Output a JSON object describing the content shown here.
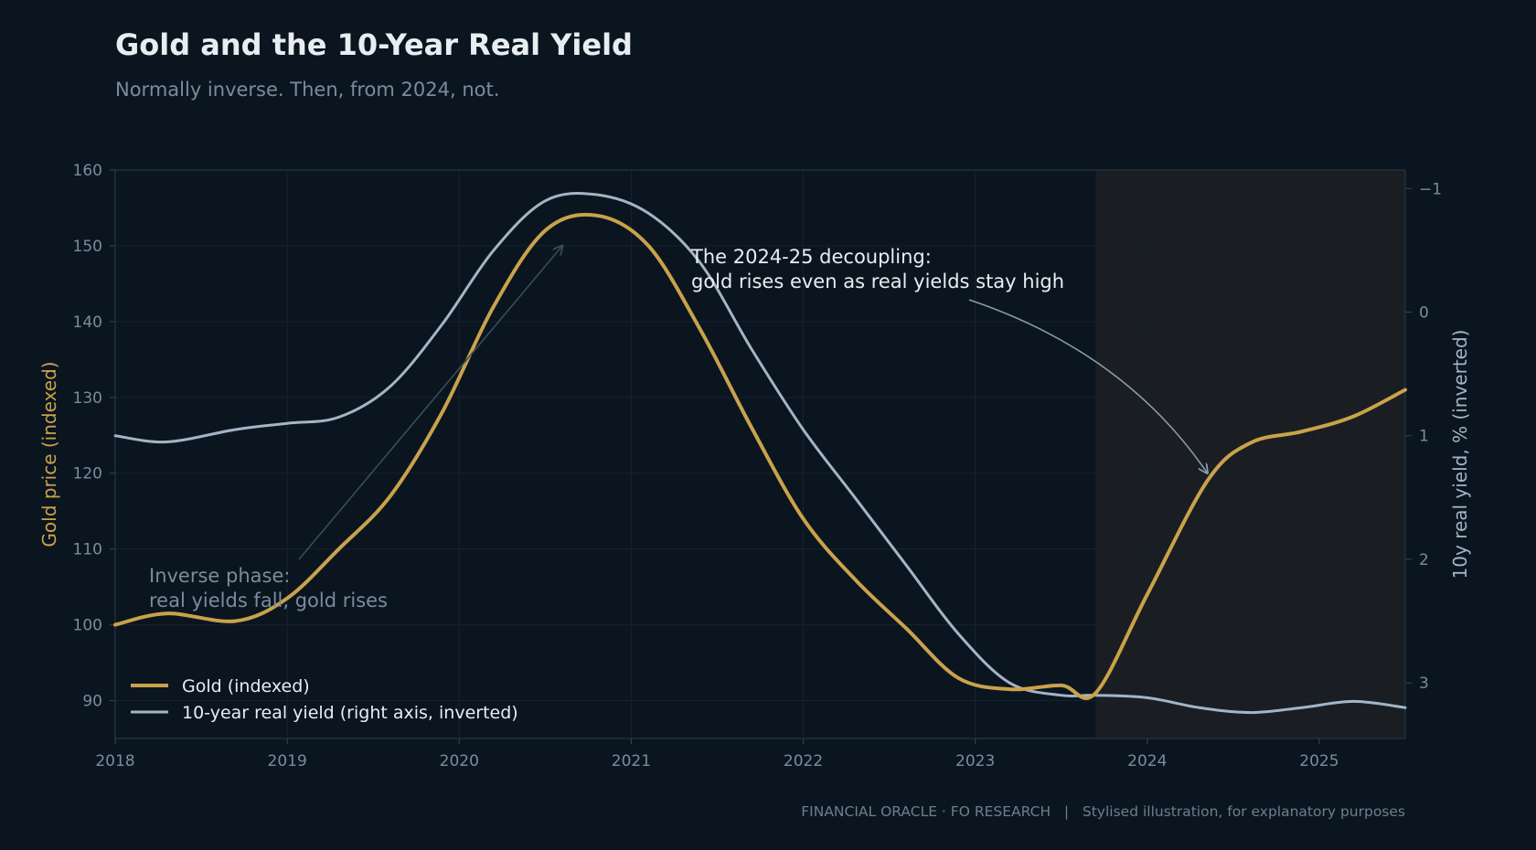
{
  "header": {
    "title": "Gold and the 10-Year Real Yield",
    "subtitle": "Normally inverse. Then, from 2024, not."
  },
  "footer": {
    "text": "FINANCIAL ORACLE · FO RESEARCH   |   Stylised illustration, for explanatory purposes"
  },
  "colors": {
    "background": "#0b1520",
    "gold": "#c9a24a",
    "yield": "#a3b5c6",
    "muted": "#7a8c9d",
    "shade": "#1a1e23"
  },
  "chart_data": {
    "type": "line",
    "title": "Gold and the 10-Year Real Yield",
    "subtitle": "Normally inverse. Then, from 2024, not.",
    "x_ticks": [
      "2018",
      "2019",
      "2020",
      "2021",
      "2022",
      "2023",
      "2024",
      "2025"
    ],
    "xlim": [
      2018.0,
      2025.5
    ],
    "left_axis": {
      "label": "Gold price (indexed)",
      "ylim": [
        85,
        160
      ],
      "ticks": [
        90,
        100,
        110,
        120,
        130,
        140,
        150,
        160
      ]
    },
    "right_axis": {
      "label": "10y real yield, % (inverted)",
      "ylim": [
        3.45,
        -1.15
      ],
      "inverted": true,
      "ticks": [
        "−1",
        "0",
        "1",
        "2",
        "3"
      ],
      "tick_values": [
        -1,
        0,
        1,
        2,
        3
      ]
    },
    "shaded_region": {
      "x_start": 2023.7,
      "x_end": 2025.5
    },
    "grid": true,
    "legend_position": "bottom-left",
    "series": [
      {
        "name": "Gold (indexed)",
        "axis": "left",
        "color": "#c9a24a",
        "x": [
          2018.0,
          2018.3,
          2018.7,
          2019.0,
          2019.3,
          2019.6,
          2019.9,
          2020.2,
          2020.5,
          2020.8,
          2021.1,
          2021.4,
          2021.7,
          2022.0,
          2022.3,
          2022.6,
          2022.9,
          2023.2,
          2023.5,
          2023.7,
          2024.0,
          2024.35,
          2024.6,
          2024.9,
          2025.2,
          2025.5
        ],
        "y": [
          100,
          101.5,
          100.5,
          103.5,
          110,
          117,
          128,
          142,
          152,
          154,
          150,
          139,
          126,
          114,
          106,
          99.5,
          93,
          91.5,
          92,
          91,
          104,
          119,
          124,
          125.5,
          127.5,
          131
        ]
      },
      {
        "name": "10-year real yield (right axis, inverted)",
        "axis": "right",
        "color": "#a3b5c6",
        "x": [
          2018.0,
          2018.3,
          2018.7,
          2019.0,
          2019.3,
          2019.6,
          2019.9,
          2020.2,
          2020.5,
          2020.8,
          2021.1,
          2021.4,
          2021.7,
          2022.0,
          2022.3,
          2022.6,
          2022.9,
          2023.2,
          2023.5,
          2023.7,
          2024.0,
          2024.3,
          2024.6,
          2024.9,
          2025.2,
          2025.5
        ],
        "y": [
          1.0,
          1.05,
          0.95,
          0.9,
          0.85,
          0.6,
          0.1,
          -0.5,
          -0.9,
          -0.95,
          -0.8,
          -0.4,
          0.3,
          0.95,
          1.5,
          2.05,
          2.6,
          3.0,
          3.1,
          3.1,
          3.12,
          3.2,
          3.24,
          3.2,
          3.15,
          3.2
        ]
      }
    ],
    "annotations": [
      {
        "lines": [
          "Inverse phase:",
          "real yields fall, gold rises"
        ],
        "color": "#7a8c9d",
        "arrow_to": [
          2020.6,
          150
        ]
      },
      {
        "lines": [
          "The 2024-25 decoupling:",
          "gold rises even as real yields stay high"
        ],
        "color": "#e8edf2",
        "arrow_to": [
          2024.35,
          120
        ]
      }
    ]
  }
}
